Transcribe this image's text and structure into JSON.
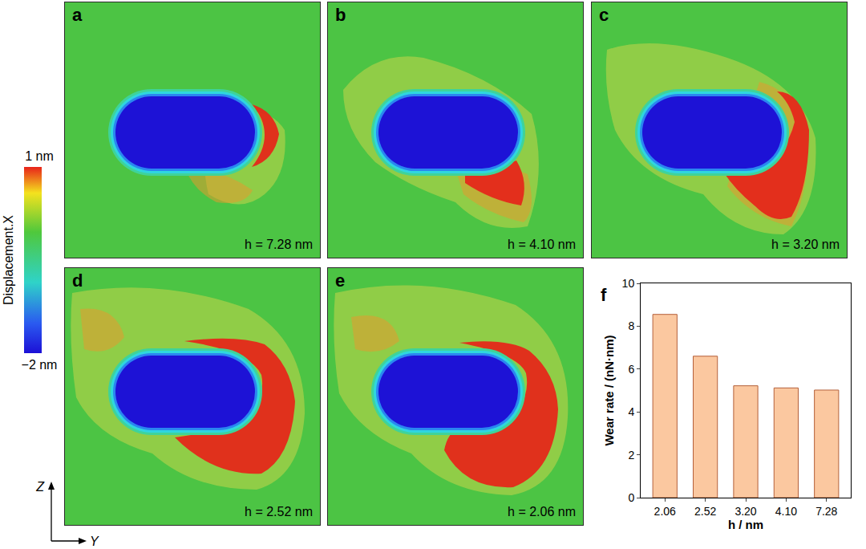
{
  "colorbar": {
    "title": "Displacement.X",
    "range": [
      -2,
      1
    ],
    "ticks": [
      {
        "value": 1,
        "label": "1 nm"
      },
      {
        "value": -2,
        "label": "−2 nm"
      }
    ]
  },
  "panels": [
    {
      "letter": "a",
      "label": "h = 7.28 nm"
    },
    {
      "letter": "b",
      "label": "h = 4.10 nm"
    },
    {
      "letter": "c",
      "label": "h = 3.20 nm"
    },
    {
      "letter": "d",
      "label": "h = 2.52 nm"
    },
    {
      "letter": "e",
      "label": "h = 2.06 nm"
    }
  ],
  "axes_indicator": {
    "vertical": "Z",
    "horizontal": "Y"
  },
  "chart_data": {
    "letter": "f",
    "type": "bar",
    "categories": [
      "2.06",
      "2.52",
      "3.20",
      "4.10",
      "7.28"
    ],
    "values": [
      8.55,
      6.6,
      5.22,
      5.12,
      5.02
    ],
    "x_label": "h / nm",
    "y_label": "Wear rate / (nN·nm)",
    "ylim": [
      0,
      10
    ],
    "yticks": [
      0,
      2,
      4,
      6,
      8,
      10
    ],
    "color": "#fbc8a0",
    "grid": false
  }
}
